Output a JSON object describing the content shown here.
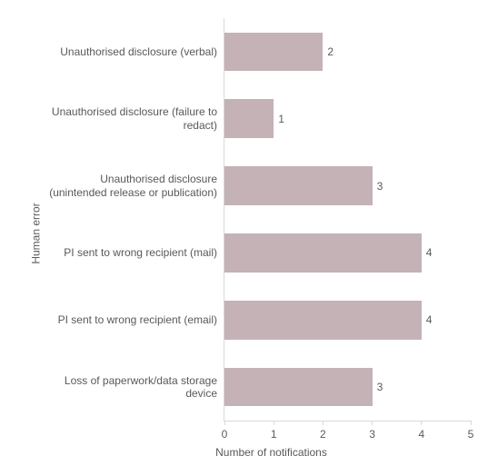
{
  "chart": {
    "type": "bar-horizontal",
    "y_axis_title": "Human error",
    "x_axis_title": "Number of notifications",
    "background_color": "#ffffff",
    "bar_color": "#c4b2b6",
    "text_color": "#595959",
    "axis_line_color": "#d9d9d9",
    "label_fontsize": 12,
    "xlim": [
      0,
      5
    ],
    "x_ticks": [
      0,
      1,
      2,
      3,
      4,
      5
    ],
    "categories": [
      "Unauthorised disclosure (verbal)",
      "Unauthorised disclosure (failure to redact)",
      "Unauthorised disclosure (unintended release or publication)",
      "PI sent to wrong recipient (mail)",
      "PI sent to wrong recipient (email)",
      "Loss of paperwork/data storage device"
    ],
    "values": [
      2,
      1,
      3,
      4,
      4,
      3
    ]
  }
}
